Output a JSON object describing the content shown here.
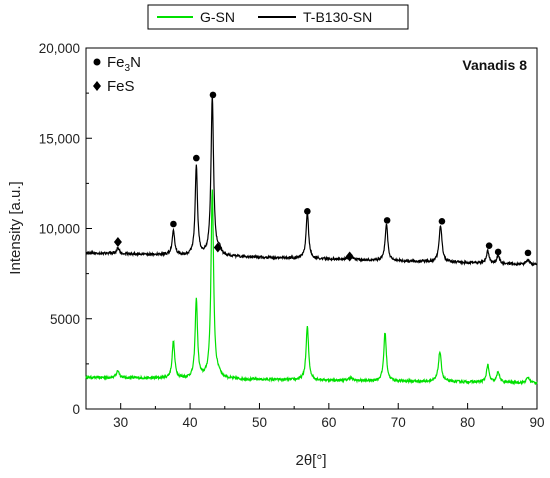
{
  "chart_data": {
    "type": "line",
    "xlabel": "2θ[°]",
    "ylabel": "Intensity [a.u.]",
    "xlim": [
      25,
      90
    ],
    "ylim": [
      0,
      20000
    ],
    "x_ticks": [
      30,
      40,
      50,
      60,
      70,
      80,
      90
    ],
    "y_ticks": [
      0,
      5000,
      10000,
      15000,
      20000
    ],
    "y_tick_labels": [
      "0",
      "5000",
      "10,000",
      "15,000",
      "20,000"
    ],
    "legend": {
      "placement": "top-outside"
    },
    "annotation": "Vanadis 8",
    "series": [
      {
        "name": "G-SN",
        "color": "#00e000",
        "baseline": 1750,
        "end_baseline": 1450,
        "noise": 70,
        "peaks": [
          {
            "x": 29.6,
            "h": 400,
            "w": 0.25
          },
          {
            "x": 37.6,
            "h": 2050,
            "w": 0.22
          },
          {
            "x": 40.9,
            "h": 4400,
            "w": 0.2
          },
          {
            "x": 43.2,
            "h": 10500,
            "w": 0.22
          },
          {
            "x": 44.2,
            "h": 200,
            "w": 0.3
          },
          {
            "x": 56.9,
            "h": 2950,
            "w": 0.22
          },
          {
            "x": 63.1,
            "h": 150,
            "w": 0.3
          },
          {
            "x": 68.1,
            "h": 2700,
            "w": 0.22
          },
          {
            "x": 76.0,
            "h": 1650,
            "w": 0.25
          },
          {
            "x": 82.9,
            "h": 950,
            "w": 0.22
          },
          {
            "x": 84.4,
            "h": 600,
            "w": 0.22
          },
          {
            "x": 88.7,
            "h": 300,
            "w": 0.25
          }
        ]
      },
      {
        "name": "T-B130-SN",
        "color": "#000000",
        "baseline": 8650,
        "end_baseline": 8000,
        "noise": 70,
        "peaks": [
          {
            "x": 29.6,
            "h": 300,
            "w": 0.25
          },
          {
            "x": 37.6,
            "h": 1350,
            "w": 0.22
          },
          {
            "x": 40.9,
            "h": 5000,
            "w": 0.2
          },
          {
            "x": 43.2,
            "h": 8800,
            "w": 0.22
          },
          {
            "x": 44.2,
            "h": 300,
            "w": 0.3
          },
          {
            "x": 56.9,
            "h": 2550,
            "w": 0.22
          },
          {
            "x": 63.1,
            "h": 250,
            "w": 0.3
          },
          {
            "x": 68.3,
            "h": 2050,
            "w": 0.22
          },
          {
            "x": 76.1,
            "h": 2000,
            "w": 0.25
          },
          {
            "x": 82.9,
            "h": 700,
            "w": 0.22
          },
          {
            "x": 84.4,
            "h": 450,
            "w": 0.22
          },
          {
            "x": 88.7,
            "h": 250,
            "w": 0.25
          }
        ]
      }
    ],
    "phase_legend": [
      {
        "marker": "circle",
        "label_main": "Fe",
        "label_sub": "3",
        "label_tail": "N"
      },
      {
        "marker": "diamond",
        "label_main": "FeS",
        "label_sub": "",
        "label_tail": ""
      }
    ],
    "markers": [
      {
        "type": "diamond",
        "x": 29.6,
        "y": 9250
      },
      {
        "type": "circle",
        "x": 37.6,
        "y": 10250
      },
      {
        "type": "circle",
        "x": 40.9,
        "y": 13900
      },
      {
        "type": "circle",
        "x": 43.3,
        "y": 17400
      },
      {
        "type": "diamond",
        "x": 44.0,
        "y": 8950
      },
      {
        "type": "circle",
        "x": 56.9,
        "y": 10950
      },
      {
        "type": "diamond",
        "x": 63.0,
        "y": 8450
      },
      {
        "type": "circle",
        "x": 68.4,
        "y": 10450
      },
      {
        "type": "circle",
        "x": 76.3,
        "y": 10400
      },
      {
        "type": "circle",
        "x": 83.1,
        "y": 9050
      },
      {
        "type": "circle",
        "x": 84.4,
        "y": 8700
      },
      {
        "type": "circle",
        "x": 88.7,
        "y": 8650
      }
    ]
  }
}
